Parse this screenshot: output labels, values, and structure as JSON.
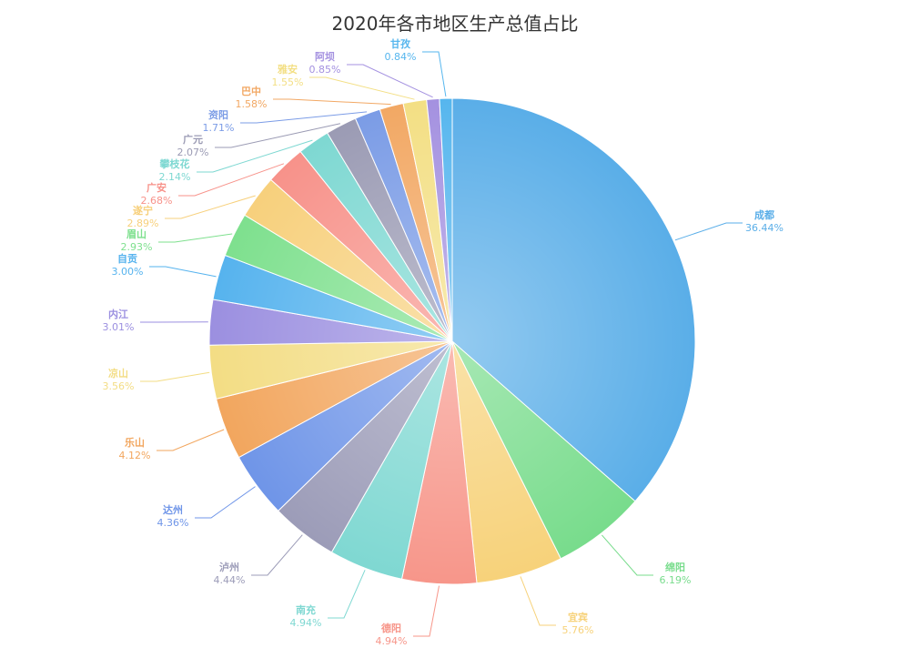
{
  "chart_data": {
    "type": "pie",
    "title": "2020年各市地区生产总值占比",
    "slices": [
      {
        "name": "成都",
        "pct": "36.44%",
        "value": 36.44,
        "color": "#5aaee8"
      },
      {
        "name": "绵阳",
        "pct": "6.19%",
        "value": 6.19,
        "color": "#78dc8c"
      },
      {
        "name": "宜宾",
        "pct": "5.76%",
        "value": 5.76,
        "color": "#f7d27a"
      },
      {
        "name": "德阳",
        "pct": "4.94%",
        "value": 4.94,
        "color": "#f7968a"
      },
      {
        "name": "南充",
        "pct": "4.94%",
        "value": 4.94,
        "color": "#7fd8d2"
      },
      {
        "name": "泸州",
        "pct": "4.44%",
        "value": 4.44,
        "color": "#9c9cb8"
      },
      {
        "name": "达州",
        "pct": "4.36%",
        "value": 4.36,
        "color": "#6f95e8"
      },
      {
        "name": "乐山",
        "pct": "4.12%",
        "value": 4.12,
        "color": "#f2a65e"
      },
      {
        "name": "凉山",
        "pct": "3.56%",
        "value": 3.56,
        "color": "#f3dd84"
      },
      {
        "name": "内江",
        "pct": "3.01%",
        "value": 3.01,
        "color": "#9b8fe0"
      },
      {
        "name": "自贡",
        "pct": "3.00%",
        "value": 3.0,
        "color": "#56b3ee"
      },
      {
        "name": "眉山",
        "pct": "2.93%",
        "value": 2.93,
        "color": "#7ee08e"
      },
      {
        "name": "遂宁",
        "pct": "2.89%",
        "value": 2.89,
        "color": "#f7d07c"
      },
      {
        "name": "广安",
        "pct": "2.68%",
        "value": 2.68,
        "color": "#f7928a"
      },
      {
        "name": "攀枝花",
        "pct": "2.14%",
        "value": 2.14,
        "color": "#7ed8d2"
      },
      {
        "name": "广元",
        "pct": "2.07%",
        "value": 2.07,
        "color": "#9b9bb4"
      },
      {
        "name": "资阳",
        "pct": "1.71%",
        "value": 1.71,
        "color": "#7b9ce6"
      },
      {
        "name": "巴中",
        "pct": "1.58%",
        "value": 1.58,
        "color": "#f2a864"
      },
      {
        "name": "雅安",
        "pct": "1.55%",
        "value": 1.55,
        "color": "#f3df84"
      },
      {
        "name": "阿坝",
        "pct": "0.85%",
        "value": 0.85,
        "color": "#a491e0"
      },
      {
        "name": "甘孜",
        "pct": "0.84%",
        "value": 0.84,
        "color": "#56b6ee"
      }
    ]
  }
}
